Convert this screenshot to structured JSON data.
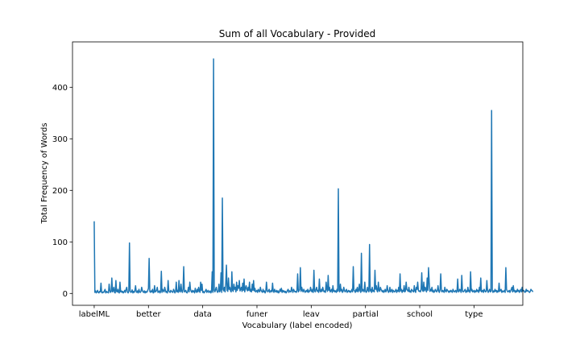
{
  "chart_data": {
    "type": "line",
    "title": "Sum of all Vocabulary - Provided",
    "xlabel": "Vocabulary (label encoded)",
    "ylabel": "Total Frequency of Words",
    "xlim": [
      -80,
      1580
    ],
    "ylim": [
      -23,
      488
    ],
    "grid": false,
    "x_tick_labels": [
      "labelML",
      "better",
      "data",
      "funer",
      "leav",
      "partial",
      "school",
      "type"
    ],
    "x_tick_positions": [
      0,
      200,
      400,
      600,
      800,
      1000,
      1200,
      1400
    ],
    "y_ticks": [
      0,
      100,
      200,
      300,
      400
    ],
    "series": [
      {
        "color": "#1f77b4",
        "values": [
          140,
          2,
          5,
          1,
          3,
          6,
          2,
          1,
          4,
          3,
          20,
          2,
          1,
          3,
          2,
          5,
          8,
          1,
          4,
          2,
          3,
          1,
          18,
          6,
          2,
          4,
          30,
          3,
          5,
          12,
          2,
          1,
          25,
          4,
          3,
          8,
          2,
          1,
          22,
          3,
          5,
          2,
          4,
          1,
          3,
          6,
          2,
          8,
          12,
          3,
          1,
          4,
          98,
          5,
          2,
          3,
          7,
          1,
          4,
          2,
          6,
          15,
          3,
          2,
          5,
          1,
          8,
          3,
          2,
          4,
          12,
          6,
          3,
          2,
          5,
          1,
          4,
          2,
          3,
          6,
          10,
          68,
          4,
          2,
          5,
          3,
          8,
          1,
          2,
          15,
          3,
          4,
          6,
          12,
          2,
          3,
          5,
          1,
          4,
          43,
          2,
          8,
          5,
          3,
          12,
          6,
          2,
          4,
          1,
          25,
          5,
          3,
          2,
          6,
          4,
          3,
          2,
          8,
          5,
          1,
          4,
          22,
          3,
          6,
          2,
          25,
          4,
          3,
          18,
          5,
          2,
          8,
          52,
          3,
          4,
          6,
          2,
          1,
          5,
          12,
          3,
          22,
          8,
          4,
          2,
          6,
          3,
          5,
          1,
          10,
          4,
          2,
          8,
          3,
          12,
          5,
          2,
          22,
          6,
          18,
          2,
          4,
          1,
          3,
          5,
          8,
          2,
          4,
          6,
          2,
          3,
          5,
          1,
          4,
          42,
          2,
          455,
          6,
          3,
          8,
          12,
          5,
          2,
          4,
          18,
          3,
          6,
          40,
          2,
          185,
          8,
          5,
          12,
          3,
          20,
          55,
          6,
          4,
          30,
          8,
          12,
          5,
          3,
          42,
          6,
          4,
          18,
          8,
          12,
          3,
          22,
          6,
          15,
          10,
          25,
          5,
          8,
          12,
          4,
          20,
          6,
          28,
          3,
          10,
          15,
          8,
          5,
          12,
          6,
          22,
          4,
          8,
          3,
          18,
          6,
          25,
          5,
          10,
          3,
          4,
          6,
          2,
          8,
          5,
          3,
          12,
          6,
          4,
          2,
          8,
          3,
          5,
          1,
          4,
          22,
          6,
          3,
          5,
          8,
          2,
          4,
          6,
          3,
          20,
          5,
          2,
          8,
          4,
          3,
          6,
          2,
          5,
          1,
          3,
          8,
          4,
          10,
          2,
          6,
          3,
          5,
          2,
          4,
          1,
          3,
          6,
          8,
          2,
          5,
          4,
          3,
          12,
          6,
          2,
          8,
          5,
          3,
          4,
          2,
          6,
          38,
          3,
          5,
          8,
          50,
          4,
          12,
          6,
          3,
          8,
          5,
          2,
          4,
          6,
          3,
          8,
          2,
          5,
          4,
          12,
          6,
          3,
          8,
          2,
          45,
          5,
          3,
          8,
          12,
          4,
          6,
          2,
          28,
          5,
          3,
          8,
          4,
          12,
          6,
          3,
          5,
          2,
          22,
          8,
          4,
          35,
          6,
          12,
          3,
          5,
          8,
          2,
          15,
          4,
          6,
          3,
          5,
          2,
          8,
          4,
          203,
          6,
          3,
          18,
          5,
          8,
          2,
          4,
          12,
          6,
          3,
          5,
          8,
          2,
          4,
          6,
          3,
          5,
          2,
          4,
          8,
          3,
          52,
          6,
          5,
          2,
          8,
          4,
          12,
          3,
          6,
          18,
          5,
          2,
          78,
          4,
          8,
          6,
          3,
          22,
          5,
          2,
          4,
          12,
          6,
          3,
          95,
          5,
          8,
          2,
          12,
          4,
          6,
          3,
          45,
          8,
          15,
          5,
          3,
          22,
          6,
          4,
          12,
          8,
          5,
          3,
          6,
          2,
          4,
          8,
          3,
          5,
          15,
          6,
          2,
          4,
          12,
          3,
          5,
          8,
          2,
          6,
          4,
          3,
          5,
          8,
          2,
          6,
          4,
          12,
          3,
          38,
          5,
          8,
          2,
          6,
          4,
          15,
          3,
          5,
          22,
          8,
          6,
          4,
          12,
          3,
          5,
          2,
          8,
          6,
          4,
          3,
          15,
          5,
          2,
          12,
          8,
          22,
          6,
          4,
          5,
          3,
          8,
          40,
          6,
          4,
          22,
          5,
          12,
          8,
          3,
          30,
          6,
          50,
          22,
          4,
          8,
          5,
          12,
          3,
          6,
          2,
          4,
          8,
          5,
          3,
          6,
          15,
          4,
          2,
          8,
          38,
          5,
          3,
          6,
          4,
          2,
          12,
          5,
          3,
          8,
          6,
          4,
          2,
          5,
          3,
          6,
          4,
          2,
          8,
          5,
          3,
          4,
          6,
          2,
          5,
          28,
          3,
          4,
          8,
          6,
          2,
          35,
          5,
          3,
          4,
          6,
          8,
          2,
          5,
          3,
          12,
          4,
          6,
          2,
          42,
          5,
          8,
          3,
          4,
          6,
          2,
          5,
          3,
          8,
          4,
          6,
          2,
          12,
          5,
          30,
          3,
          4,
          6,
          2,
          8,
          5,
          3,
          4,
          25,
          6,
          2,
          5,
          8,
          3,
          4,
          355,
          6,
          2,
          5,
          3,
          8,
          4,
          6,
          2,
          5,
          3,
          20,
          4,
          6,
          8,
          2,
          5,
          3,
          4,
          6,
          2,
          50,
          8,
          5,
          3,
          4,
          6,
          2,
          5,
          8,
          12,
          3,
          15,
          4,
          6,
          2,
          5,
          3,
          8,
          4,
          6,
          2,
          5,
          8,
          3,
          12,
          4,
          6,
          5,
          2,
          3,
          8,
          4,
          6,
          5,
          3,
          2,
          4,
          8,
          6,
          5,
          3
        ]
      }
    ]
  }
}
